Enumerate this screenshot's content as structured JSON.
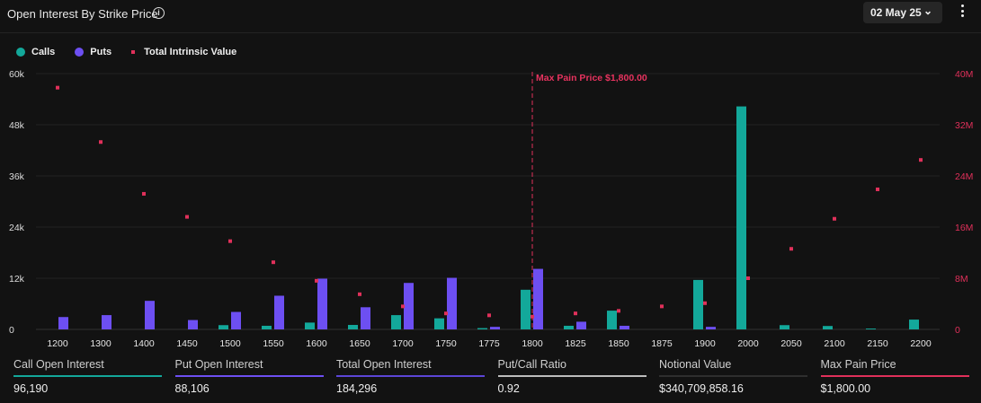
{
  "header": {
    "title": "Open Interest By Strike Price",
    "info_icon": "info-icon",
    "date_selector": "02 May 25",
    "menu_icon": "kebab-menu-icon"
  },
  "legend": {
    "calls": "Calls",
    "puts": "Puts",
    "intrinsic": "Total Intrinsic Value"
  },
  "colors": {
    "calls": "#13a89a",
    "puts": "#6d4ff2",
    "intrinsic": "#e0305a",
    "max_pain": "#e0305a"
  },
  "chart_data": {
    "type": "bar",
    "categories": [
      "1200",
      "1300",
      "1400",
      "1450",
      "1500",
      "1550",
      "1600",
      "1650",
      "1700",
      "1750",
      "1775",
      "1800",
      "1825",
      "1850",
      "1875",
      "1900",
      "2000",
      "2050",
      "2100",
      "2150",
      "2200"
    ],
    "series": [
      {
        "name": "Calls",
        "axis": "left",
        "values": [
          0,
          0,
          0,
          0,
          1000,
          850,
          1600,
          1050,
          3350,
          2600,
          300,
          9300,
          850,
          4400,
          0,
          11600,
          52300,
          1000,
          800,
          200,
          2300
        ]
      },
      {
        "name": "Puts",
        "axis": "left",
        "values": [
          2900,
          3350,
          6700,
          2200,
          4100,
          7900,
          11900,
          5200,
          10900,
          12100,
          600,
          14200,
          1800,
          850,
          0,
          600,
          0,
          0,
          0,
          0,
          0
        ]
      },
      {
        "name": "Total Intrinsic Value",
        "axis": "right",
        "type": "scatter",
        "values": [
          37800000,
          29300000,
          21200000,
          17600000,
          13800000,
          10500000,
          7600000,
          5500000,
          3600000,
          2500000,
          2200000,
          2000000,
          2500000,
          2900000,
          3600000,
          4100000,
          8000000,
          12600000,
          17300000,
          21900000,
          26500000
        ]
      }
    ],
    "y_left": {
      "ticks": [
        "0",
        "12k",
        "24k",
        "36k",
        "48k",
        "60k"
      ],
      "ylim": [
        0,
        60000
      ]
    },
    "y_right": {
      "ticks": [
        "0",
        "8M",
        "16M",
        "24M",
        "32M",
        "40M"
      ],
      "ylim": [
        0,
        40000000
      ]
    },
    "grid": true,
    "legend_position": "top-left",
    "annotation": {
      "label": "Max Pain Price $1,800.00",
      "category": "1800"
    }
  },
  "stats": [
    {
      "label": "Call Open Interest",
      "value": "96,190",
      "color": "#13a89a"
    },
    {
      "label": "Put Open Interest",
      "value": "88,106",
      "color": "#6d4ff2"
    },
    {
      "label": "Total Open Interest",
      "value": "184,296",
      "color": "#5b45d6"
    },
    {
      "label": "Put/Call Ratio",
      "value": "0.92",
      "color": "#bdbdbd"
    },
    {
      "label": "Notional Value",
      "value": "$340,709,858.16",
      "color": "#2e2e2e"
    },
    {
      "label": "Max Pain Price",
      "value": "$1,800.00",
      "color": "#e0305a"
    }
  ]
}
